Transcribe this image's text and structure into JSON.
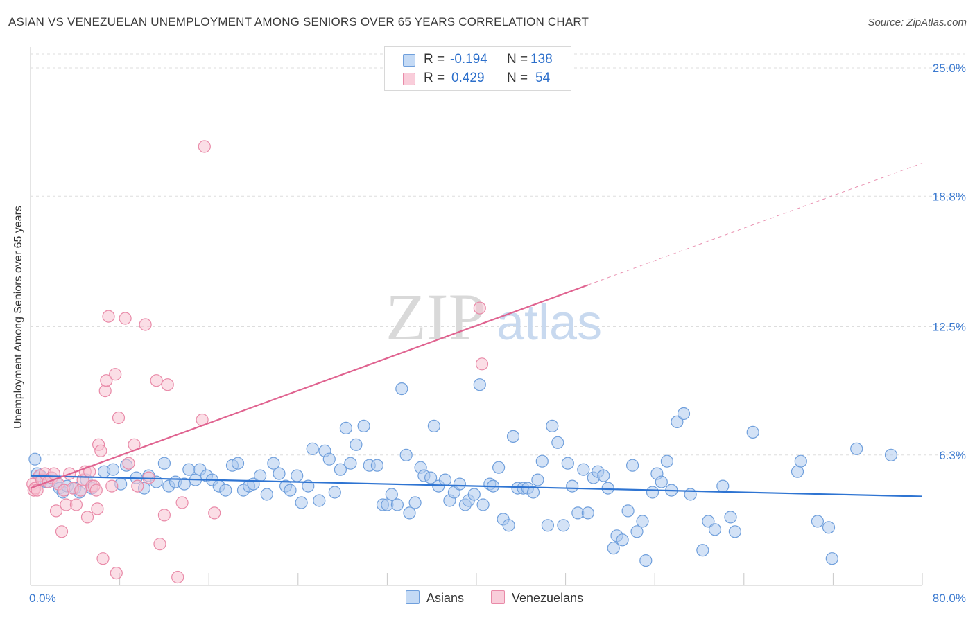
{
  "title": "ASIAN VS VENEZUELAN UNEMPLOYMENT AMONG SENIORS OVER 65 YEARS CORRELATION CHART",
  "source": "Source: ZipAtlas.com",
  "watermark": {
    "part1": "ZIP",
    "part2": "atlas"
  },
  "colors": {
    "asian_fill": "#aecbef",
    "asian_stroke": "#6f9fdc",
    "asian_line": "#2e74d2",
    "venez_fill": "#f7c2d2",
    "venez_stroke": "#e98aa8",
    "venez_line": "#e06390",
    "tick_label": "#3b7ad0",
    "grid": "#dddddd"
  },
  "legend": {
    "rows": [
      {
        "r_label": "R =",
        "r_value": "-0.194",
        "n_label": "N =",
        "n_value": "138"
      },
      {
        "r_label": "R =",
        "r_value": "0.429",
        "n_label": "N =",
        "n_value": "54"
      }
    ]
  },
  "bottom_legend": {
    "asians": "Asians",
    "venezuelans": "Venezuelans"
  },
  "chart_data": {
    "type": "scatter",
    "title": "ASIAN VS VENEZUELAN UNEMPLOYMENT AMONG SENIORS OVER 65 YEARS CORRELATION CHART",
    "xlabel": "",
    "ylabel": "Unemployment Among Seniors over 65 years",
    "xlim": [
      0,
      80
    ],
    "ylim": [
      0,
      25
    ],
    "x_tick_labels": [
      "0.0%",
      "80.0%"
    ],
    "y_ticks": [
      6.3,
      12.5,
      18.8,
      25.0
    ],
    "y_tick_labels": [
      "6.3%",
      "12.5%",
      "18.8%",
      "25.0%"
    ],
    "grid": true,
    "legend_position": "top-center",
    "series": [
      {
        "name": "Asians",
        "r": -0.194,
        "n": 138,
        "trend": {
          "x0": 0,
          "y0": 5.3,
          "x1": 80,
          "y1": 4.3,
          "dashed_from": null
        },
        "points": [
          [
            0.4,
            6.1
          ],
          [
            0.6,
            5.4
          ],
          [
            0.9,
            5.3
          ],
          [
            1.1,
            5.1
          ],
          [
            1.4,
            5.0
          ],
          [
            1.9,
            5.2
          ],
          [
            2.3,
            5.0
          ],
          [
            2.6,
            4.7
          ],
          [
            2.9,
            4.5
          ],
          [
            3.3,
            4.8
          ],
          [
            4.0,
            4.7
          ],
          [
            4.4,
            4.5
          ],
          [
            5.0,
            5.1
          ],
          [
            5.5,
            4.7
          ],
          [
            6.6,
            5.5
          ],
          [
            7.4,
            5.6
          ],
          [
            8.1,
            4.9
          ],
          [
            8.6,
            5.8
          ],
          [
            9.5,
            5.2
          ],
          [
            10.2,
            4.7
          ],
          [
            10.6,
            5.3
          ],
          [
            11.3,
            5.0
          ],
          [
            12.0,
            5.9
          ],
          [
            12.4,
            4.8
          ],
          [
            13.0,
            5.0
          ],
          [
            13.8,
            4.9
          ],
          [
            14.2,
            5.6
          ],
          [
            14.8,
            5.1
          ],
          [
            15.2,
            5.6
          ],
          [
            15.8,
            5.3
          ],
          [
            16.3,
            5.1
          ],
          [
            16.9,
            4.8
          ],
          [
            17.5,
            4.6
          ],
          [
            18.1,
            5.8
          ],
          [
            18.6,
            5.9
          ],
          [
            19.1,
            4.6
          ],
          [
            19.6,
            4.8
          ],
          [
            20.0,
            4.9
          ],
          [
            20.6,
            5.3
          ],
          [
            21.2,
            4.4
          ],
          [
            21.8,
            5.9
          ],
          [
            22.3,
            5.4
          ],
          [
            22.9,
            4.8
          ],
          [
            23.3,
            4.6
          ],
          [
            23.9,
            5.3
          ],
          [
            24.3,
            4.0
          ],
          [
            24.9,
            4.8
          ],
          [
            25.3,
            6.6
          ],
          [
            25.9,
            4.1
          ],
          [
            26.4,
            6.5
          ],
          [
            26.8,
            6.1
          ],
          [
            27.3,
            4.5
          ],
          [
            27.8,
            5.6
          ],
          [
            28.3,
            7.6
          ],
          [
            28.7,
            5.9
          ],
          [
            29.2,
            6.8
          ],
          [
            29.9,
            7.7
          ],
          [
            30.4,
            5.8
          ],
          [
            31.1,
            5.8
          ],
          [
            31.6,
            3.9
          ],
          [
            32.0,
            3.9
          ],
          [
            32.4,
            4.4
          ],
          [
            32.9,
            3.9
          ],
          [
            33.3,
            9.5
          ],
          [
            33.7,
            6.3
          ],
          [
            34.0,
            3.5
          ],
          [
            34.5,
            4.0
          ],
          [
            35.0,
            5.7
          ],
          [
            35.3,
            5.3
          ],
          [
            35.9,
            5.2
          ],
          [
            36.2,
            7.7
          ],
          [
            36.6,
            4.8
          ],
          [
            37.2,
            5.1
          ],
          [
            37.6,
            4.1
          ],
          [
            38.0,
            4.5
          ],
          [
            38.5,
            4.9
          ],
          [
            39.0,
            3.9
          ],
          [
            39.3,
            4.1
          ],
          [
            39.8,
            4.4
          ],
          [
            40.3,
            9.7
          ],
          [
            40.6,
            3.9
          ],
          [
            41.2,
            4.9
          ],
          [
            41.5,
            4.8
          ],
          [
            42.0,
            5.7
          ],
          [
            42.4,
            3.2
          ],
          [
            42.9,
            2.9
          ],
          [
            43.3,
            7.2
          ],
          [
            43.7,
            4.7
          ],
          [
            44.2,
            4.7
          ],
          [
            44.6,
            4.7
          ],
          [
            45.1,
            4.5
          ],
          [
            45.5,
            5.1
          ],
          [
            45.9,
            6.0
          ],
          [
            46.4,
            2.9
          ],
          [
            46.8,
            7.7
          ],
          [
            47.3,
            6.9
          ],
          [
            47.8,
            2.9
          ],
          [
            48.2,
            5.9
          ],
          [
            48.6,
            4.8
          ],
          [
            49.1,
            3.5
          ],
          [
            49.6,
            5.6
          ],
          [
            50.0,
            3.5
          ],
          [
            50.5,
            5.2
          ],
          [
            50.9,
            5.5
          ],
          [
            51.4,
            5.3
          ],
          [
            51.8,
            4.7
          ],
          [
            52.3,
            1.8
          ],
          [
            52.6,
            2.4
          ],
          [
            53.1,
            2.2
          ],
          [
            53.6,
            3.6
          ],
          [
            54.0,
            5.8
          ],
          [
            54.4,
            2.6
          ],
          [
            54.9,
            3.1
          ],
          [
            55.2,
            1.2
          ],
          [
            55.8,
            4.5
          ],
          [
            56.2,
            5.4
          ],
          [
            56.6,
            5.0
          ],
          [
            57.1,
            6.0
          ],
          [
            57.5,
            4.6
          ],
          [
            58.0,
            7.9
          ],
          [
            58.6,
            8.3
          ],
          [
            59.2,
            4.4
          ],
          [
            60.3,
            1.7
          ],
          [
            60.8,
            3.1
          ],
          [
            61.4,
            2.7
          ],
          [
            62.1,
            4.8
          ],
          [
            62.8,
            3.3
          ],
          [
            63.2,
            2.6
          ],
          [
            64.8,
            7.4
          ],
          [
            68.8,
            5.5
          ],
          [
            69.1,
            6.0
          ],
          [
            70.6,
            3.1
          ],
          [
            71.6,
            2.8
          ],
          [
            71.9,
            1.3
          ],
          [
            74.1,
            6.6
          ],
          [
            77.2,
            6.3
          ]
        ]
      },
      {
        "name": "Venezuelans",
        "r": 0.429,
        "n": 54,
        "trend": {
          "x0": 0,
          "y0": 4.7,
          "x1": 80,
          "y1": 20.4,
          "dashed_from": 50
        },
        "points": [
          [
            0.2,
            4.9
          ],
          [
            0.3,
            4.6
          ],
          [
            0.4,
            4.7
          ],
          [
            0.6,
            4.6
          ],
          [
            0.8,
            5.3
          ],
          [
            1.0,
            5.1
          ],
          [
            1.3,
            5.4
          ],
          [
            1.6,
            5.0
          ],
          [
            1.9,
            5.2
          ],
          [
            2.1,
            5.4
          ],
          [
            2.3,
            3.6
          ],
          [
            2.5,
            4.9
          ],
          [
            2.8,
            2.6
          ],
          [
            3.0,
            4.6
          ],
          [
            3.2,
            3.9
          ],
          [
            3.5,
            5.4
          ],
          [
            3.8,
            4.7
          ],
          [
            4.1,
            3.9
          ],
          [
            4.5,
            4.6
          ],
          [
            4.7,
            5.1
          ],
          [
            4.9,
            5.5
          ],
          [
            5.1,
            3.3
          ],
          [
            5.3,
            5.5
          ],
          [
            5.5,
            4.8
          ],
          [
            5.7,
            4.8
          ],
          [
            5.9,
            4.6
          ],
          [
            6.0,
            3.7
          ],
          [
            6.1,
            6.8
          ],
          [
            6.3,
            6.5
          ],
          [
            6.5,
            1.3
          ],
          [
            6.7,
            9.4
          ],
          [
            6.8,
            9.9
          ],
          [
            7.0,
            13.0
          ],
          [
            7.3,
            4.8
          ],
          [
            7.6,
            10.2
          ],
          [
            7.7,
            0.6
          ],
          [
            7.9,
            8.1
          ],
          [
            8.5,
            12.9
          ],
          [
            8.8,
            5.9
          ],
          [
            9.3,
            6.8
          ],
          [
            9.6,
            4.8
          ],
          [
            10.3,
            12.6
          ],
          [
            10.6,
            5.2
          ],
          [
            11.3,
            9.9
          ],
          [
            11.6,
            2.0
          ],
          [
            12.0,
            3.4
          ],
          [
            12.3,
            9.7
          ],
          [
            13.2,
            0.4
          ],
          [
            13.6,
            4.0
          ],
          [
            15.4,
            8.0
          ],
          [
            15.6,
            21.2
          ],
          [
            16.5,
            3.5
          ],
          [
            40.3,
            13.4
          ],
          [
            40.5,
            10.7
          ]
        ]
      }
    ]
  }
}
